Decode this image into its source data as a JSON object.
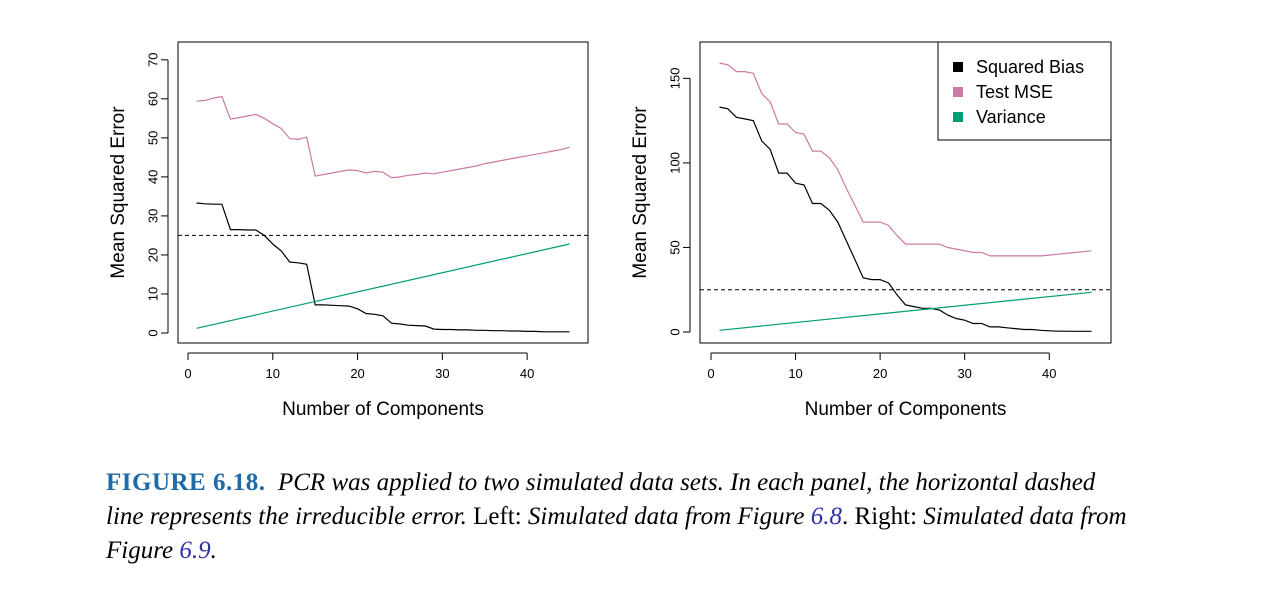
{
  "chart_data": [
    {
      "type": "line",
      "xlabel": "Number of Components",
      "ylabel": "Mean Squared Error",
      "xlim": [
        0,
        46
      ],
      "ylim": [
        0,
        72
      ],
      "xticks": [
        0,
        10,
        20,
        30,
        40
      ],
      "yticks": [
        0,
        10,
        20,
        30,
        40,
        50,
        60,
        70
      ],
      "hline": 25,
      "legend": false,
      "series": [
        {
          "name": "Squared Bias",
          "color": "#000000",
          "x": [
            1,
            2,
            3,
            4,
            5,
            6,
            7,
            8,
            9,
            10,
            11,
            12,
            13,
            14,
            15,
            16,
            17,
            18,
            19,
            20,
            21,
            22,
            23,
            24,
            25,
            26,
            27,
            28,
            29,
            30,
            31,
            32,
            33,
            34,
            35,
            36,
            37,
            38,
            39,
            40,
            41,
            42,
            43,
            44,
            45
          ],
          "y": [
            33.3,
            33.1,
            33.0,
            33.0,
            26.5,
            26.5,
            26.4,
            26.4,
            25.0,
            22.8,
            21.0,
            18.2,
            18.0,
            17.6,
            7.2,
            7.2,
            7.1,
            7.0,
            6.9,
            6.2,
            5.0,
            4.8,
            4.4,
            2.5,
            2.3,
            2.0,
            1.9,
            1.8,
            1.0,
            0.9,
            0.9,
            0.8,
            0.8,
            0.7,
            0.7,
            0.6,
            0.6,
            0.5,
            0.5,
            0.4,
            0.4,
            0.3,
            0.3,
            0.3,
            0.3
          ]
        },
        {
          "name": "Test MSE",
          "color": "#cc79a7",
          "x": [
            1,
            2,
            3,
            4,
            5,
            6,
            7,
            8,
            9,
            10,
            11,
            12,
            13,
            14,
            15,
            16,
            17,
            18,
            19,
            20,
            21,
            22,
            23,
            24,
            25,
            26,
            27,
            28,
            29,
            30,
            31,
            32,
            33,
            34,
            35,
            36,
            37,
            38,
            39,
            40,
            41,
            42,
            43,
            44,
            45
          ],
          "y": [
            59.4,
            59.6,
            60.2,
            60.6,
            54.8,
            55.2,
            55.6,
            56.0,
            55.0,
            53.6,
            52.4,
            49.8,
            49.6,
            50.2,
            40.2,
            40.6,
            41.0,
            41.4,
            41.8,
            41.6,
            41.0,
            41.4,
            41.2,
            39.8,
            40.0,
            40.4,
            40.6,
            41.0,
            40.8,
            41.2,
            41.6,
            42.0,
            42.4,
            42.8,
            43.4,
            43.8,
            44.2,
            44.6,
            45.0,
            45.4,
            45.8,
            46.2,
            46.6,
            47.0,
            47.6
          ]
        },
        {
          "name": "Variance",
          "color": "#009e73",
          "x": [
            1,
            45
          ],
          "y": [
            1.2,
            22.8
          ]
        }
      ]
    },
    {
      "type": "line",
      "xlabel": "Number of Components",
      "ylabel": "Mean Squared Error",
      "xlim": [
        0,
        46
      ],
      "ylim": [
        0,
        165
      ],
      "xticks": [
        0,
        10,
        20,
        30,
        40
      ],
      "yticks": [
        0,
        50,
        100,
        150
      ],
      "hline": 25,
      "legend": true,
      "legend_position": "top-right",
      "series": [
        {
          "name": "Squared Bias",
          "color": "#000000",
          "x": [
            1,
            2,
            3,
            4,
            5,
            6,
            7,
            8,
            9,
            10,
            11,
            12,
            13,
            14,
            15,
            16,
            17,
            18,
            19,
            20,
            21,
            22,
            23,
            24,
            25,
            26,
            27,
            28,
            29,
            30,
            31,
            32,
            33,
            34,
            35,
            36,
            37,
            38,
            39,
            40,
            41,
            42,
            43,
            44,
            45
          ],
          "y": [
            133,
            132,
            127,
            126,
            125,
            113,
            108,
            94,
            94,
            88,
            87,
            76,
            76,
            72,
            65,
            54,
            43,
            32,
            31,
            31,
            29,
            22,
            16,
            15,
            14,
            14,
            13,
            10,
            8,
            7,
            5,
            5,
            3,
            3,
            2.5,
            2,
            1.5,
            1.5,
            1,
            0.7,
            0.5,
            0.5,
            0.4,
            0.4,
            0.4
          ]
        },
        {
          "name": "Test MSE",
          "color": "#cc79a7",
          "x": [
            1,
            2,
            3,
            4,
            5,
            6,
            7,
            8,
            9,
            10,
            11,
            12,
            13,
            14,
            15,
            16,
            17,
            18,
            19,
            20,
            21,
            22,
            23,
            24,
            25,
            26,
            27,
            28,
            29,
            30,
            31,
            32,
            33,
            34,
            35,
            36,
            37,
            38,
            39,
            40,
            41,
            42,
            43,
            44,
            45
          ],
          "y": [
            159,
            158,
            154,
            154,
            153,
            141,
            136,
            123,
            123,
            118,
            117,
            107,
            107,
            103,
            96,
            85,
            75,
            65,
            65,
            65,
            63,
            57,
            52,
            52,
            52,
            52,
            52,
            50,
            49,
            48,
            47,
            47,
            45,
            45,
            45,
            45,
            45,
            45,
            45,
            45.5,
            46,
            46.5,
            47,
            47.5,
            48
          ]
        },
        {
          "name": "Variance",
          "color": "#009e73",
          "x": [
            1,
            45
          ],
          "y": [
            1,
            23.5
          ]
        }
      ]
    }
  ],
  "legend_items": [
    "Squared Bias",
    "Test MSE",
    "Variance"
  ],
  "caption": {
    "figure_label": "FIGURE 6.18.",
    "text1": "PCR was applied to two simulated data sets. In each panel, the horizontal dashed line represents the irreducible error.",
    "left_label": "Left:",
    "left_text": "Simulated data from Figure",
    "left_ref": "6.8",
    "right_label": "Right:",
    "right_text": "Simulated data from Figure",
    "right_ref": "6.9"
  }
}
